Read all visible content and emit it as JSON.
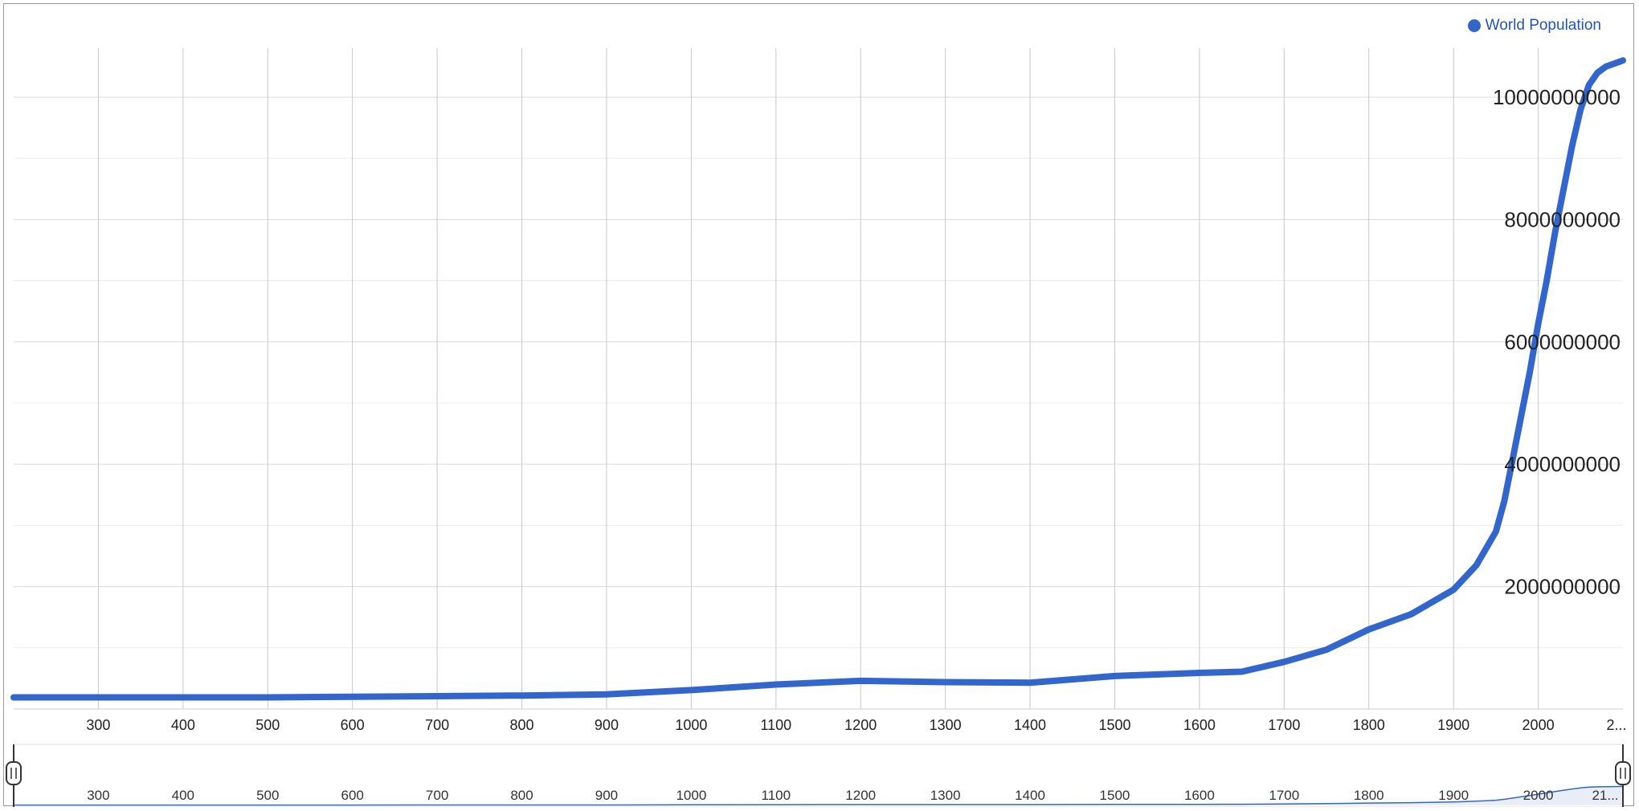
{
  "colors": {
    "series": "#3366cc",
    "legend_text": "#2255bb"
  },
  "legend": {
    "label": "World Population"
  },
  "chart_data": {
    "type": "line",
    "title": "",
    "xlabel": "",
    "ylabel": "",
    "xlim": [
      200,
      2100
    ],
    "ylim": [
      0,
      10800000000
    ],
    "x_ticks": [
      300,
      400,
      500,
      600,
      700,
      800,
      900,
      1000,
      1100,
      1200,
      1300,
      1400,
      1500,
      1600,
      1700,
      1800,
      1900,
      2000,
      "2..."
    ],
    "y_ticks": [
      2000000000,
      4000000000,
      6000000000,
      8000000000,
      10000000000
    ],
    "navigator_ticks": [
      300,
      400,
      500,
      600,
      700,
      800,
      900,
      1000,
      1100,
      1200,
      1300,
      1400,
      1500,
      1600,
      1700,
      1800,
      1900,
      2000,
      "21..."
    ],
    "legend_position": "top-right",
    "grid": true,
    "series": [
      {
        "name": "World Population",
        "x": [
          200,
          400,
          500,
          600,
          700,
          800,
          900,
          1000,
          1100,
          1200,
          1300,
          1400,
          1500,
          1600,
          1650,
          1700,
          1750,
          1800,
          1850,
          1900,
          1927,
          1950,
          1960,
          1970,
          1980,
          1990,
          2000,
          2010,
          2020,
          2030,
          2040,
          2050,
          2060,
          2070,
          2080,
          2090,
          2100
        ],
        "y": [
          190000000,
          190000000,
          190000000,
          200000000,
          210000000,
          220000000,
          240000000,
          310000000,
          400000000,
          460000000,
          440000000,
          430000000,
          540000000,
          590000000,
          610000000,
          770000000,
          970000000,
          1300000000,
          1550000000,
          1950000000,
          2350000000,
          2900000000,
          3400000000,
          4100000000,
          4800000000,
          5500000000,
          6300000000,
          7000000000,
          7800000000,
          8500000000,
          9200000000,
          9800000000,
          10200000000,
          10400000000,
          10500000000,
          10550000000,
          10600000000
        ]
      }
    ]
  }
}
